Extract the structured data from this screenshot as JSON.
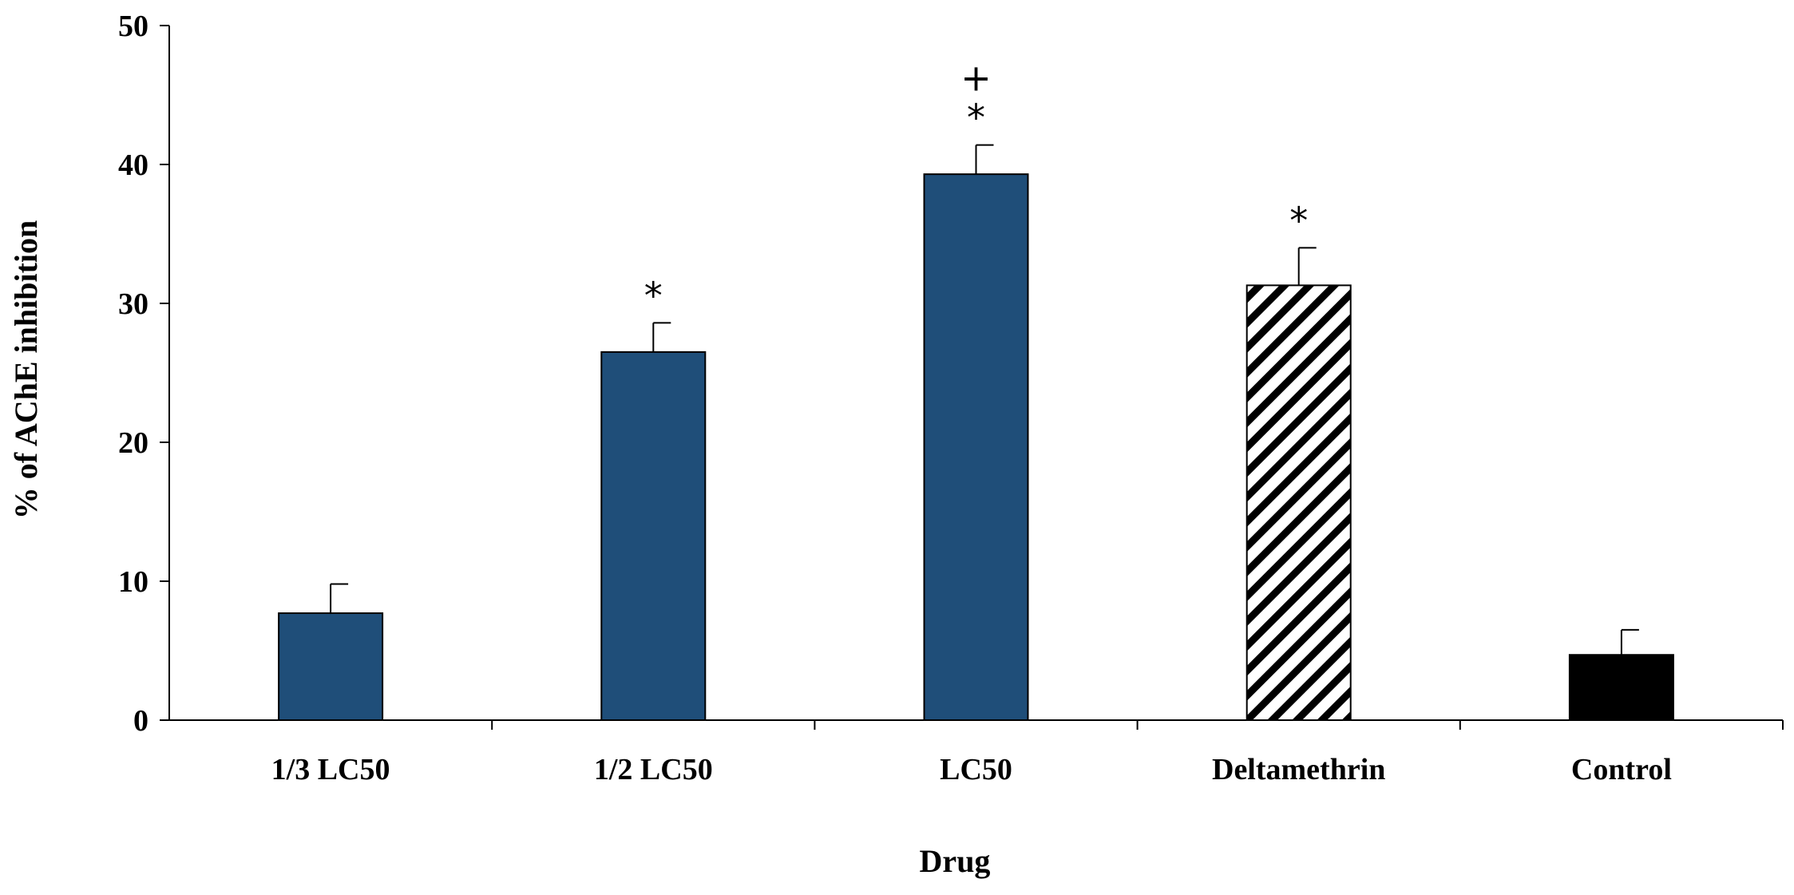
{
  "chart_data": {
    "type": "bar",
    "title": "",
    "xlabel": "Drug",
    "ylabel": "% of AChE inhibition",
    "ylim": [
      0,
      50
    ],
    "yticks": [
      0,
      10,
      20,
      30,
      40,
      50
    ],
    "grid": false,
    "categories": [
      "1/3 LC50",
      "1/2 LC50",
      "LC50",
      "Deltamethrin",
      "Control"
    ],
    "values": [
      7.7,
      26.5,
      39.3,
      31.3,
      4.7
    ],
    "errors": [
      2.1,
      2.1,
      2.1,
      2.7,
      1.8
    ],
    "annotations": [
      [],
      [
        "*"
      ],
      [
        "*",
        "+"
      ],
      [
        "*"
      ],
      []
    ],
    "fills": [
      "solid-blue",
      "solid-blue",
      "solid-blue",
      "diagonal-hatch",
      "solid-black"
    ],
    "colors": {
      "bar_blue": "#1f4e79",
      "bar_black": "#000000",
      "hatch": "#000000",
      "axis": "#000000"
    }
  }
}
